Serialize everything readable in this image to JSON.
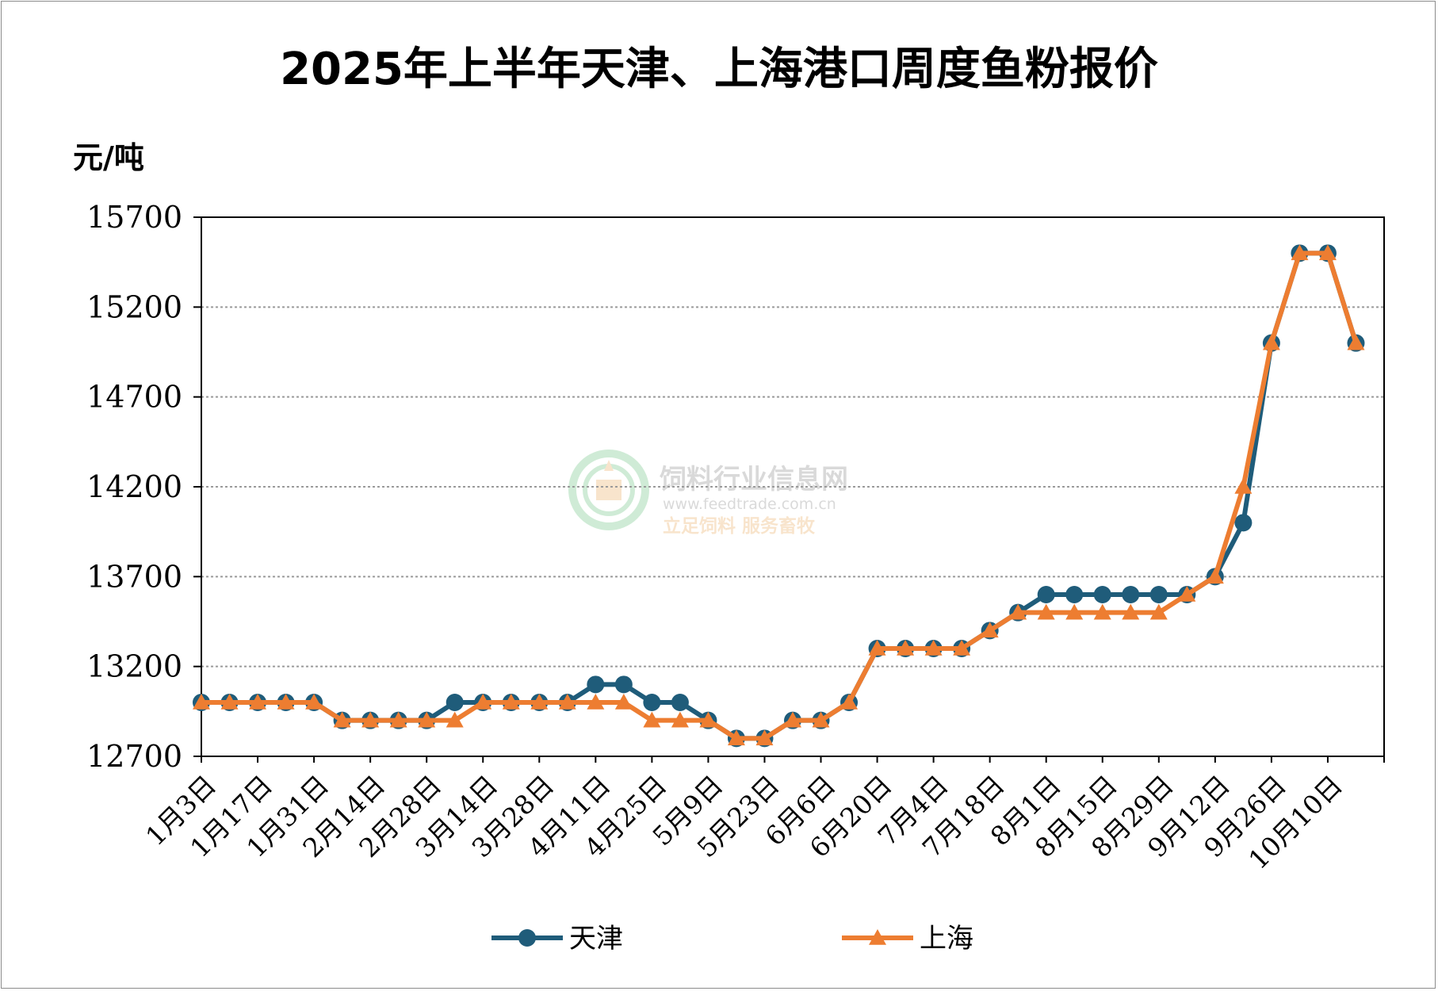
{
  "chart_data": {
    "type": "line",
    "title": "2025年上半年天津、上海港口周度鱼粉报价",
    "ylabel": "元/吨",
    "xlabel": "",
    "ylim": [
      12700,
      15700
    ],
    "yticks": [
      12700,
      13200,
      13700,
      14200,
      14700,
      15200,
      15700
    ],
    "grid": true,
    "legend_position": "bottom",
    "x_tick_labels": [
      "1月3日",
      "1月17日",
      "1月31日",
      "2月14日",
      "2月28日",
      "3月14日",
      "3月28日",
      "4月11日",
      "4月25日",
      "5月9日",
      "5月23日",
      "6月6日",
      "6月20日",
      "7月4日",
      "7月18日",
      "8月1日",
      "8月15日",
      "8月29日",
      "9月12日",
      "9月26日",
      "10月10日"
    ],
    "series": [
      {
        "name": "天津",
        "color": "#1f5c7a",
        "marker": "circle",
        "values": [
          13000,
          13000,
          13000,
          13000,
          13000,
          12900,
          12900,
          12900,
          12900,
          13000,
          13000,
          13000,
          13000,
          13000,
          13100,
          13100,
          13000,
          13000,
          12900,
          12800,
          12800,
          12900,
          12900,
          13000,
          13300,
          13300,
          13300,
          13300,
          13400,
          13500,
          13600,
          13600,
          13600,
          13600,
          13600,
          13600,
          13700,
          14000,
          15000,
          15500,
          15500,
          15000
        ]
      },
      {
        "name": "上海",
        "color": "#ed7d31",
        "marker": "triangle",
        "values": [
          13000,
          13000,
          13000,
          13000,
          13000,
          12900,
          12900,
          12900,
          12900,
          12900,
          13000,
          13000,
          13000,
          13000,
          13000,
          13000,
          12900,
          12900,
          12900,
          12800,
          12800,
          12900,
          12900,
          13000,
          13300,
          13300,
          13300,
          13300,
          13400,
          13500,
          13500,
          13500,
          13500,
          13500,
          13500,
          13600,
          13700,
          14200,
          15000,
          15500,
          15500,
          15000
        ]
      }
    ]
  },
  "watermark": {
    "name": "饲料行业信息网",
    "url": "www.feedtrade.com.cn",
    "slogan": "立足饲料  服务畜牧"
  }
}
